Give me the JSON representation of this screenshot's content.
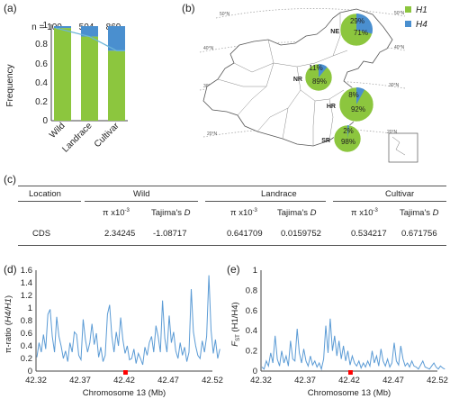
{
  "panels": {
    "a": "(a)",
    "b": "(b)",
    "c": "(c)",
    "d": "(d)",
    "e": "(e)"
  },
  "panel_a": {
    "n_labels": [
      "n = 100",
      "504",
      "869"
    ],
    "ylabel": "Frequency",
    "y_ticks": [
      "0",
      "0.2",
      "0.4",
      "0.6",
      "0.8",
      "1"
    ],
    "colors": {
      "H1": "#8cc63e",
      "H4": "#4a8fcf",
      "line": "#6bb5d8"
    }
  },
  "panel_b": {
    "legend": [
      "H1",
      "H4"
    ],
    "regions": [
      {
        "code": "NE",
        "h1_label": "71%",
        "h4_label": "29%",
        "h1": 0.71,
        "h4": 0.29
      },
      {
        "code": "NR",
        "h1_label": "89%",
        "h4_label": "11%",
        "h1": 0.89,
        "h4": 0.11
      },
      {
        "code": "HR",
        "h1_label": "92%",
        "h4_label": "8%",
        "h1": 0.92,
        "h4": 0.08
      },
      {
        "code": "SR",
        "h1_label": "98%",
        "h4_label": "2%",
        "h1": 0.98,
        "h4": 0.02
      }
    ],
    "lat_labels": [
      "50°N",
      "40°N",
      "30°N",
      "20°N",
      "50°N",
      "40°N",
      "30°N",
      "20°N"
    ]
  },
  "table_c": {
    "headers": {
      "location": "Location",
      "wild": "Wild",
      "landrace": "Landrace",
      "cultivar": "Cultivar"
    },
    "subheaders": {
      "pi": "π x10",
      "pi_exp": "-3",
      "tajima": "Tajima's ",
      "tajima_d": "D"
    },
    "row": {
      "location": "CDS",
      "wild_pi": "2.34245",
      "wild_d": "-1.08717",
      "landrace_pi": "0.641709",
      "landrace_d": "0.0159752",
      "cultivar_pi": "0.534217",
      "cultivar_d": "0.671756"
    }
  },
  "panel_d": {
    "ylabel_prefix": "π-ratio (",
    "ylabel_italic": "H4/H1",
    "ylabel_suffix": ")",
    "xlabel": "Chromosome 13 (Mb)",
    "x_ticks": [
      "42.32",
      "42.37",
      "42.42",
      "42.47",
      "42.52"
    ],
    "y_ticks": [
      "0",
      "0.2",
      "0.4",
      "0.6",
      "0.8",
      "1",
      "1.2",
      "1.4",
      "1.6"
    ]
  },
  "panel_e": {
    "ylabel_f": "F",
    "ylabel_sub": "ST",
    "ylabel_rest": " (H1/H4)",
    "xlabel": "Chromosome 13 (Mb)",
    "x_ticks": [
      "42.32",
      "42.37",
      "42.42",
      "42.47",
      "42.52"
    ],
    "y_ticks": [
      "0",
      "0.2",
      "0.4",
      "0.6",
      "0.8",
      "1"
    ]
  },
  "chart_data": [
    {
      "type": "bar",
      "categories": [
        "Wild",
        "Landrace",
        "Cultivar"
      ],
      "series": [
        {
          "name": "H1",
          "values": [
            0.98,
            0.89,
            0.74
          ]
        },
        {
          "name": "H4",
          "values": [
            0.02,
            0.11,
            0.26
          ]
        }
      ],
      "sample_sizes": [
        100,
        504,
        869
      ],
      "ylabel": "Frequency",
      "ylim": [
        0,
        1
      ],
      "stacked": true
    },
    {
      "type": "pie",
      "regions": [
        "NE",
        "NR",
        "HR",
        "SR"
      ],
      "series": [
        {
          "name": "H1",
          "values": [
            0.71,
            0.89,
            0.92,
            0.98
          ]
        },
        {
          "name": "H4",
          "values": [
            0.29,
            0.11,
            0.08,
            0.02
          ]
        }
      ]
    },
    {
      "type": "line",
      "xlabel": "Chromosome 13 (Mb)",
      "ylabel": "π-ratio (H4/H1)",
      "xlim": [
        42.32,
        42.52
      ],
      "ylim": [
        0,
        1.6
      ],
      "highlight_region": [
        42.419,
        42.424
      ],
      "x_step": 0.0025,
      "values": [
        0.22,
        0.45,
        0.3,
        0.58,
        0.35,
        0.9,
        0.98,
        0.55,
        0.3,
        0.86,
        0.55,
        0.4,
        0.2,
        0.32,
        0.15,
        0.45,
        0.3,
        0.62,
        0.58,
        0.25,
        0.18,
        0.82,
        0.5,
        0.3,
        0.45,
        0.75,
        0.42,
        0.6,
        0.22,
        0.38,
        0.15,
        0.25,
        0.9,
        1.05,
        0.55,
        0.3,
        0.62,
        0.4,
        0.85,
        0.5,
        0.28,
        0.4,
        0.18,
        0.2,
        0.35,
        0.12,
        0.28,
        0.2,
        0.1,
        0.38,
        0.25,
        0.45,
        0.55,
        0.3,
        0.72,
        0.55,
        0.3,
        1.12,
        0.52,
        0.3,
        0.88,
        0.45,
        0.62,
        0.32,
        0.2,
        0.45,
        0.25,
        0.38,
        0.15,
        0.3,
        1.3,
        0.62,
        0.4,
        0.25,
        0.2,
        0.48,
        0.3,
        0.55,
        1.52,
        0.65,
        0.28,
        0.5,
        0.2,
        0.35
      ]
    },
    {
      "type": "line",
      "xlabel": "Chromosome 13 (Mb)",
      "ylabel": "FST (H1/H4)",
      "xlim": [
        42.32,
        42.52
      ],
      "ylim": [
        0,
        1
      ],
      "highlight_region": [
        42.419,
        42.424
      ],
      "x_step": 0.0025,
      "values": [
        0.04,
        0.02,
        0.1,
        0.05,
        0.18,
        0.08,
        0.35,
        0.12,
        0.05,
        0.2,
        0.08,
        0.15,
        0.05,
        0.3,
        0.12,
        0.1,
        0.42,
        0.18,
        0.08,
        0.22,
        0.1,
        0.05,
        0.15,
        0.06,
        0.1,
        0.04,
        0.08,
        0.02,
        0.12,
        0.45,
        0.18,
        0.52,
        0.2,
        0.35,
        0.15,
        0.3,
        0.12,
        0.25,
        0.1,
        0.2,
        0.06,
        0.15,
        0.08,
        0.05,
        0.1,
        0.03,
        0.08,
        0.04,
        0.1,
        0.05,
        0.2,
        0.08,
        0.15,
        0.05,
        0.22,
        0.1,
        0.05,
        0.12,
        0.04,
        0.08,
        0.28,
        0.1,
        0.06,
        0.25,
        0.12,
        0.05,
        0.08,
        0.04,
        0.1,
        0.05,
        0.04,
        0.02,
        0.06,
        0.1,
        0.04,
        0.03,
        0.02,
        0.05,
        0.08,
        0.04,
        0.02,
        0.05,
        0.03,
        0.02
      ]
    }
  ]
}
